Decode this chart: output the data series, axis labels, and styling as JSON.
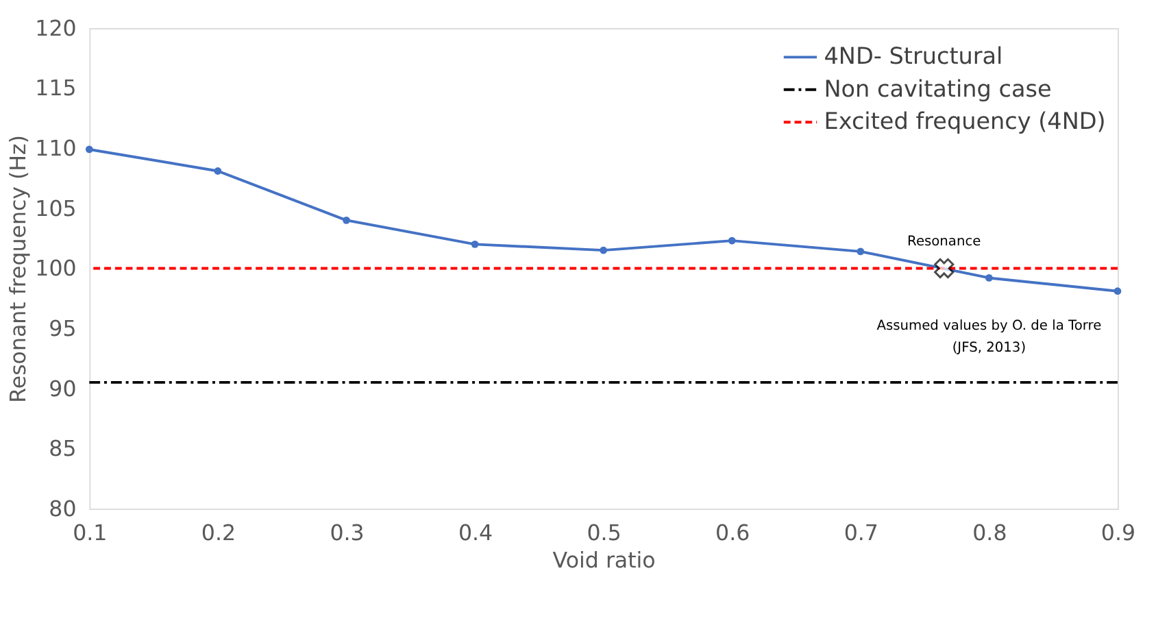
{
  "chart_data": {
    "type": "line",
    "xlabel": "Void ratio",
    "ylabel": "Resonant frequency (Hz)",
    "x": [
      0.1,
      0.2,
      0.3,
      0.4,
      0.5,
      0.6,
      0.7,
      0.8,
      0.9
    ],
    "series": [
      {
        "name": "4ND- Structural",
        "color": "#4472c4",
        "values": [
          109.9,
          108.1,
          104.0,
          102.0,
          101.5,
          102.3,
          101.4,
          99.2,
          98.1
        ]
      }
    ],
    "xlim": [
      0.1,
      0.9
    ],
    "xticks": [
      0.1,
      0.2,
      0.3,
      0.4,
      0.5,
      0.6,
      0.7,
      0.8,
      0.9
    ],
    "ylim": [
      80,
      120
    ],
    "yticks": [
      80,
      85,
      90,
      95,
      100,
      105,
      110,
      115,
      120
    ],
    "ref_lines": [
      {
        "axis": "y",
        "value": 90.5,
        "label": "Non cavitating case",
        "color": "#000000",
        "line_style": "dashdot"
      },
      {
        "axis": "y",
        "value": 100,
        "label": "Excited frequency (4ND)",
        "color": "#ff0000",
        "line_style": "dashed"
      }
    ],
    "annotations": [
      {
        "text": "Resonance",
        "x": 0.765,
        "y": 100
      },
      "Assumed values by O. de la Torre\n(JFS, 2013)"
    ],
    "marker": "circle",
    "line_style": "solid",
    "grid": false,
    "legend": "top right"
  }
}
